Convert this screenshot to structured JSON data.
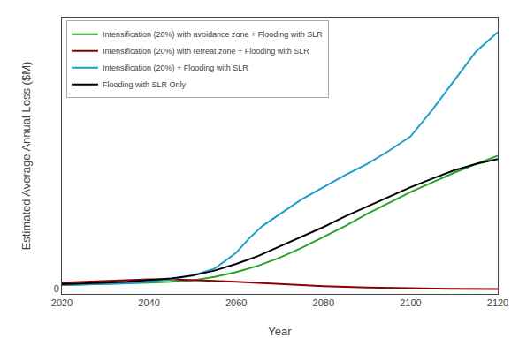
{
  "chart_data": {
    "type": "line",
    "xlabel": "Year",
    "ylabel": "Estimated Average Annual Loss ($M)",
    "xlim": [
      2020,
      2120
    ],
    "xticks": [
      2020,
      2040,
      2060,
      2080,
      2100,
      2120
    ],
    "ylim": [
      -0.01,
      0.56
    ],
    "yticks": [
      0
    ],
    "grid": true,
    "legend": "upper left",
    "series": [
      {
        "name": "Intensification (20%) with avoidance zone + Flooding with SLR",
        "color": "#2ca02c",
        "x": [
          2020,
          2025,
          2030,
          2035,
          2040,
          2045,
          2050,
          2055,
          2060,
          2065,
          2070,
          2075,
          2080,
          2085,
          2090,
          2095,
          2100,
          2105,
          2110,
          2115,
          2120
        ],
        "values": [
          0.008,
          0.009,
          0.01,
          0.011,
          0.013,
          0.015,
          0.018,
          0.025,
          0.035,
          0.048,
          0.065,
          0.085,
          0.108,
          0.13,
          0.155,
          0.178,
          0.2,
          0.22,
          0.24,
          0.258,
          0.275
        ]
      },
      {
        "name": "Intensification (20%) with retreat zone + Flooding with SLR",
        "color": "#8b0000",
        "x": [
          2020,
          2025,
          2030,
          2035,
          2040,
          2045,
          2050,
          2055,
          2060,
          2070,
          2080,
          2090,
          2100,
          2110,
          2120
        ],
        "values": [
          0.013,
          0.015,
          0.017,
          0.019,
          0.02,
          0.02,
          0.019,
          0.017,
          0.015,
          0.01,
          0.006,
          0.003,
          0.0015,
          0.0005,
          0.0001
        ]
      },
      {
        "name": "Intensification (20%) + Flooding with SLR",
        "color": "#1f9bcf",
        "x": [
          2020,
          2025,
          2030,
          2035,
          2040,
          2045,
          2050,
          2055,
          2060,
          2063,
          2066,
          2070,
          2075,
          2080,
          2085,
          2090,
          2095,
          2100,
          2105,
          2110,
          2115,
          2120
        ],
        "values": [
          0.008,
          0.009,
          0.01,
          0.012,
          0.015,
          0.02,
          0.028,
          0.042,
          0.075,
          0.105,
          0.13,
          0.155,
          0.185,
          0.21,
          0.235,
          0.258,
          0.285,
          0.315,
          0.37,
          0.43,
          0.49,
          0.53
        ]
      },
      {
        "name": "Flooding with SLR Only",
        "color": "#000000",
        "x": [
          2020,
          2025,
          2030,
          2035,
          2040,
          2045,
          2050,
          2055,
          2060,
          2065,
          2070,
          2075,
          2080,
          2085,
          2090,
          2095,
          2100,
          2105,
          2110,
          2115,
          2120
        ],
        "values": [
          0.01,
          0.011,
          0.013,
          0.015,
          0.018,
          0.022,
          0.028,
          0.038,
          0.052,
          0.068,
          0.088,
          0.108,
          0.128,
          0.15,
          0.17,
          0.19,
          0.21,
          0.228,
          0.245,
          0.258,
          0.268
        ]
      }
    ]
  }
}
